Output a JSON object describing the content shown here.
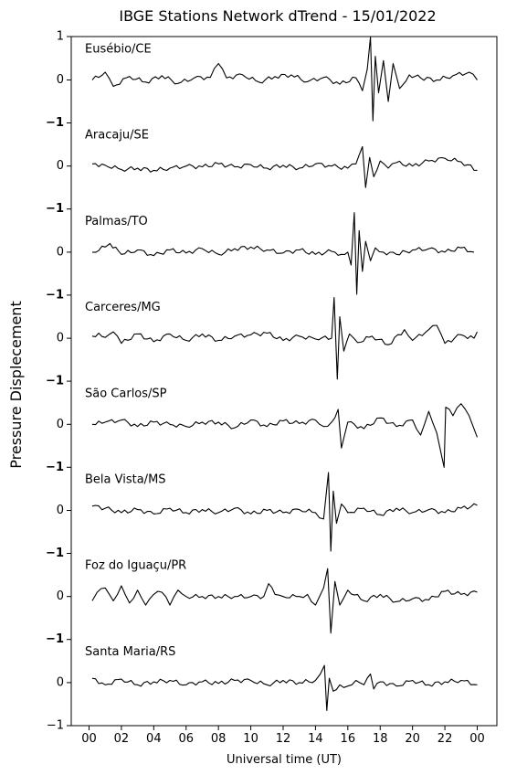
{
  "chart_data": {
    "type": "line",
    "title": "IBGE Stations Network dTrend - 15/01/2022",
    "xlabel": "Universal time (UT)",
    "ylabel": "Pressure Displecement",
    "x_ticks": [
      "00",
      "02",
      "04",
      "06",
      "08",
      "10",
      "12",
      "14",
      "16",
      "18",
      "20",
      "22",
      "00"
    ],
    "xlim": [
      0,
      24
    ],
    "ylim_per_panel": [
      -1,
      1
    ],
    "y_ticks": {
      "top": "1",
      "zero": "0",
      "separator": "−1",
      "bottom": "−1"
    },
    "grid": false,
    "legend": "none",
    "line_color": "#000000",
    "series": [
      {
        "name": "Eusébio/CE",
        "x": [
          0.2,
          1,
          1.5,
          2.5,
          3.5,
          4.5,
          5.5,
          6.5,
          7.5,
          8,
          8.5,
          9.5,
          10.5,
          11.5,
          12.5,
          13.5,
          14.5,
          15.5,
          16.5,
          16.9,
          17.2,
          17.4,
          17.55,
          17.7,
          17.9,
          18.2,
          18.5,
          18.8,
          19.2,
          19.8,
          20.5,
          21.5,
          22.5,
          23.5,
          24
        ],
        "y": [
          0.0,
          0.18,
          -0.15,
          0.08,
          -0.05,
          0.1,
          -0.08,
          0.05,
          0.06,
          0.38,
          0.05,
          0.12,
          -0.05,
          0.08,
          0.12,
          -0.04,
          0.06,
          -0.1,
          0.05,
          -0.25,
          0.25,
          1.0,
          -0.95,
          0.55,
          -0.3,
          0.45,
          -0.5,
          0.38,
          -0.2,
          0.12,
          0.05,
          0.0,
          0.1,
          0.18,
          0.0
        ]
      },
      {
        "name": "Aracaju/SE",
        "x": [
          0.2,
          1,
          2,
          3,
          4,
          5,
          6,
          7,
          8,
          9,
          10,
          11,
          12,
          13,
          14,
          15,
          16,
          16.5,
          16.9,
          17.1,
          17.35,
          17.6,
          18,
          18.5,
          19,
          20,
          21,
          22,
          23,
          24
        ],
        "y": [
          0.05,
          0.02,
          -0.08,
          -0.05,
          -0.1,
          -0.05,
          0.0,
          -0.02,
          0.05,
          -0.02,
          0.03,
          -0.05,
          0.02,
          -0.05,
          0.05,
          0.0,
          -0.05,
          0.05,
          0.45,
          -0.5,
          0.2,
          -0.25,
          0.12,
          -0.05,
          0.08,
          0.0,
          0.12,
          0.18,
          0.1,
          -0.1
        ]
      },
      {
        "name": "Palmas/TO",
        "x": [
          0.2,
          1,
          1.3,
          2,
          3,
          4,
          5,
          6,
          7,
          8,
          9,
          10,
          11,
          12,
          13,
          14,
          15,
          15.6,
          16,
          16.2,
          16.4,
          16.55,
          16.7,
          16.9,
          17.1,
          17.4,
          17.7,
          18.2,
          19,
          20,
          21,
          22,
          23,
          23.8
        ],
        "y": [
          0.0,
          0.12,
          0.2,
          -0.05,
          0.05,
          -0.08,
          0.05,
          -0.02,
          0.08,
          -0.05,
          0.08,
          0.12,
          0.05,
          -0.02,
          0.05,
          -0.05,
          0.02,
          -0.05,
          0.0,
          -0.3,
          0.92,
          -0.98,
          0.5,
          -0.45,
          0.25,
          -0.2,
          0.1,
          0.0,
          -0.05,
          0.05,
          0.08,
          0.0,
          0.1,
          0.0
        ]
      },
      {
        "name": "Carceres/MG",
        "x": [
          0.2,
          0.6,
          1,
          1.5,
          2,
          3,
          4,
          5,
          6,
          7,
          8,
          9,
          10,
          11,
          12,
          13,
          14,
          14.6,
          15.0,
          15.15,
          15.35,
          15.5,
          15.75,
          16.1,
          16.6,
          17.5,
          18.5,
          19.5,
          20,
          21,
          21.5,
          22,
          23,
          23.8,
          24
        ],
        "y": [
          0.05,
          0.12,
          0.02,
          0.15,
          -0.12,
          0.1,
          -0.08,
          0.1,
          -0.05,
          0.1,
          -0.05,
          0.05,
          0.08,
          0.12,
          -0.05,
          0.05,
          -0.02,
          0.05,
          0.0,
          0.95,
          -0.95,
          0.5,
          -0.3,
          0.1,
          -0.1,
          0.05,
          -0.15,
          0.2,
          -0.05,
          0.2,
          0.3,
          -0.12,
          0.08,
          0.0,
          0.15
        ]
      },
      {
        "name": "São Carlos/SP",
        "x": [
          0.2,
          1,
          2,
          3,
          4,
          5,
          6,
          7,
          8,
          9,
          10,
          11,
          12,
          13,
          14,
          14.5,
          15,
          15.4,
          15.6,
          16,
          17,
          18,
          19,
          20,
          20.5,
          21,
          21.5,
          21.95,
          22.05,
          22.5,
          23,
          23.5,
          24
        ],
        "y": [
          0.0,
          0.05,
          0.1,
          -0.05,
          0.05,
          0.0,
          -0.05,
          0.05,
          0.05,
          -0.08,
          0.1,
          -0.05,
          0.08,
          0.02,
          0.1,
          -0.05,
          0.05,
          0.35,
          -0.55,
          0.05,
          -0.1,
          0.15,
          -0.05,
          0.1,
          -0.25,
          0.3,
          -0.2,
          -1.0,
          0.4,
          0.2,
          0.48,
          0.2,
          -0.3
        ]
      },
      {
        "name": "Bela Vista/MS",
        "x": [
          0.2,
          1,
          2,
          3,
          4,
          5,
          6,
          7,
          8,
          9,
          10,
          11,
          12,
          13,
          14,
          14.5,
          14.8,
          14.95,
          15.1,
          15.3,
          15.6,
          16,
          17,
          18,
          19,
          20,
          21,
          22,
          23,
          24
        ],
        "y": [
          0.1,
          0.05,
          -0.05,
          0.02,
          -0.08,
          0.05,
          -0.05,
          0.02,
          -0.05,
          0.05,
          -0.08,
          0.0,
          -0.05,
          0.02,
          -0.05,
          -0.2,
          0.88,
          -0.95,
          0.45,
          -0.3,
          0.15,
          -0.05,
          0.05,
          -0.1,
          0.05,
          -0.05,
          0.02,
          -0.05,
          0.05,
          0.12
        ]
      },
      {
        "name": "Foz do Iguaçu/PR",
        "x": [
          0.2,
          0.5,
          1,
          1.5,
          2,
          2.5,
          3,
          3.5,
          4,
          4.5,
          5,
          5.5,
          6,
          7,
          8,
          9,
          10,
          10.8,
          11.1,
          11.5,
          12,
          13,
          13.5,
          14,
          14.5,
          14.75,
          14.95,
          15.2,
          15.5,
          16,
          17,
          18,
          19,
          20,
          21,
          22,
          23,
          24
        ],
        "y": [
          -0.1,
          0.1,
          0.2,
          -0.1,
          0.25,
          -0.15,
          0.15,
          -0.2,
          0.05,
          0.1,
          -0.2,
          0.15,
          0.0,
          0.0,
          0.0,
          0.0,
          0.0,
          0.0,
          0.3,
          0.05,
          0.0,
          0.0,
          0.05,
          -0.2,
          0.2,
          0.65,
          -0.85,
          0.35,
          -0.2,
          0.15,
          -0.1,
          0.05,
          -0.12,
          -0.05,
          -0.08,
          0.12,
          0.05,
          0.1
        ]
      },
      {
        "name": "Santa Maria/RS",
        "x": [
          0.2,
          1,
          2,
          3,
          4,
          5,
          6,
          7,
          8,
          9,
          10,
          11,
          12,
          13,
          14,
          14.3,
          14.55,
          14.7,
          14.85,
          15.1,
          15.5,
          16,
          16.5,
          17,
          17.4,
          17.6,
          18,
          19,
          20,
          21,
          22,
          23,
          24
        ],
        "y": [
          0.1,
          -0.05,
          0.08,
          -0.05,
          0.02,
          0.05,
          -0.05,
          0.02,
          -0.02,
          0.05,
          0.05,
          -0.05,
          0.05,
          0.0,
          0.05,
          0.2,
          0.4,
          -0.65,
          0.1,
          -0.2,
          -0.05,
          -0.08,
          0.05,
          -0.05,
          0.2,
          -0.15,
          0.02,
          -0.08,
          0.05,
          -0.05,
          0.02,
          0.05,
          -0.05
        ]
      }
    ]
  }
}
